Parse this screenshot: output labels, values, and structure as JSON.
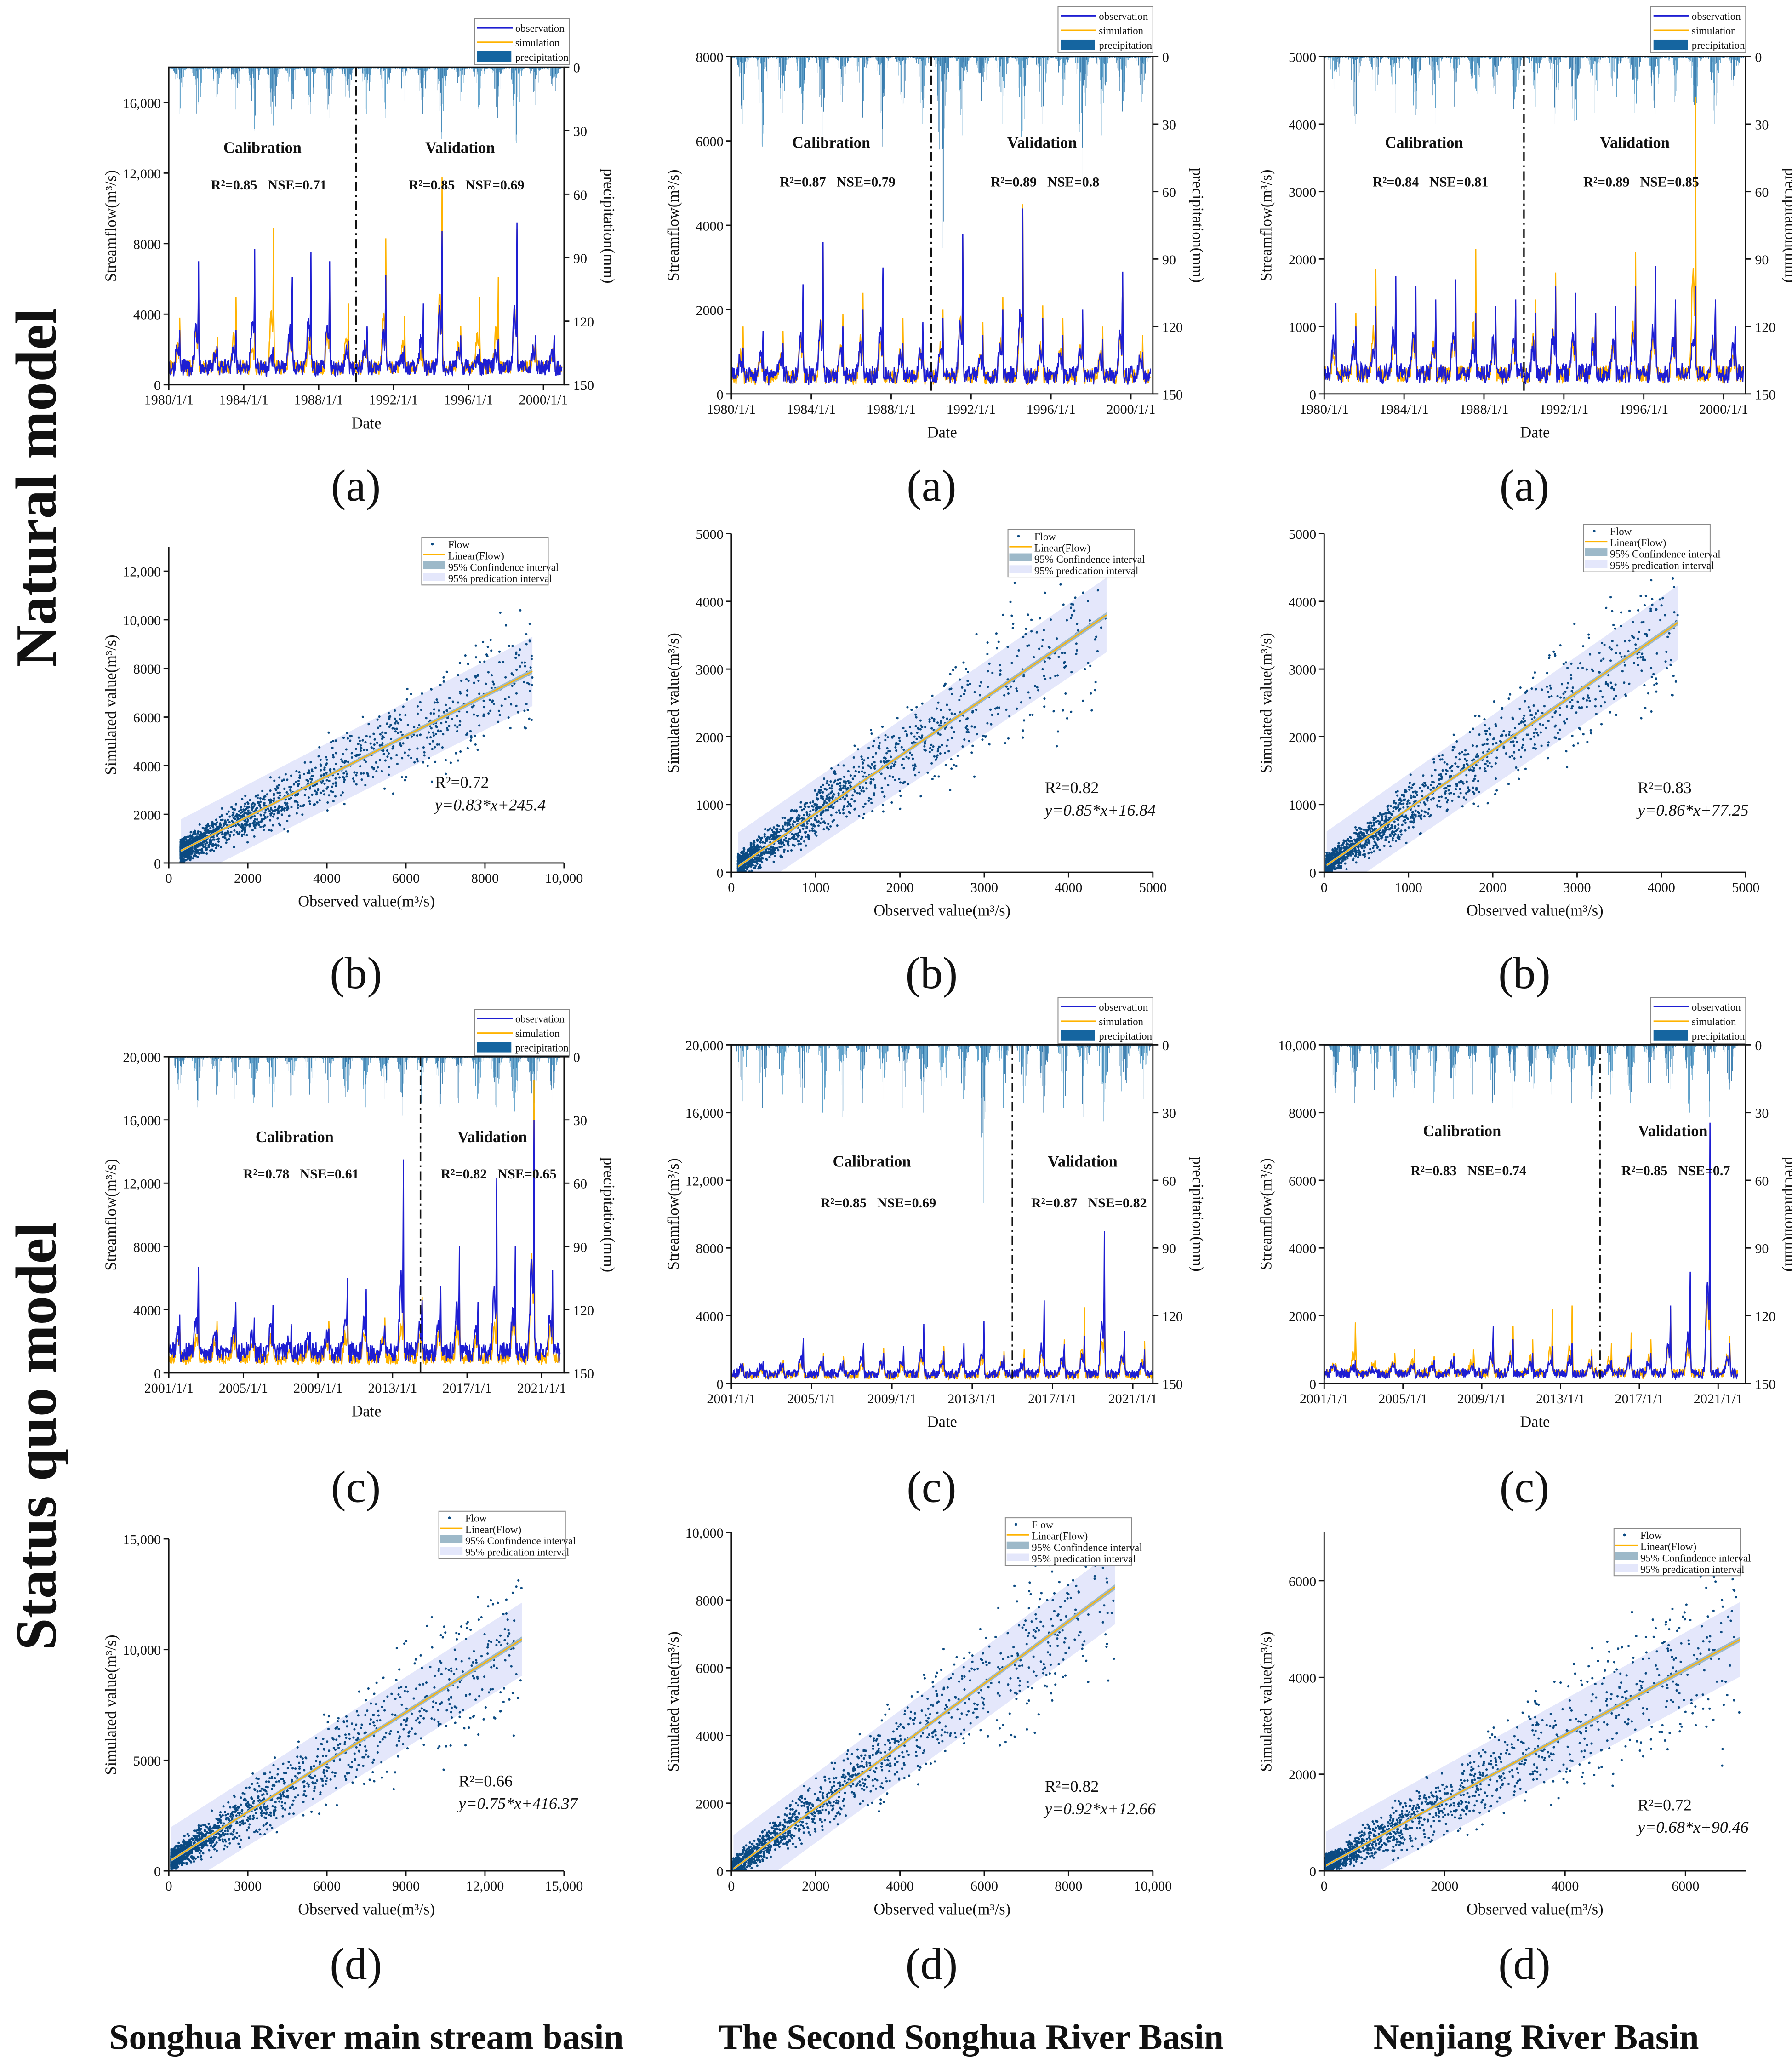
{
  "figure": {
    "row_labels": [
      "Natural model",
      "Status quo model"
    ],
    "column_labels": [
      "Songhua River main stream basin",
      "The Second Songhua River Basin",
      "Nenjiang River Basin"
    ]
  },
  "colors": {
    "observation": "#1e1ed2",
    "simulation": "#ffb300",
    "precipitation": "#1565a0",
    "flow_points": "#0b4a82",
    "confidence": "#9db9c9",
    "prediction": "#e4e7fb"
  },
  "chart_data": [
    {
      "type": "line",
      "panel_label": "(a)",
      "xlabel": "Date",
      "ylabel": "Streamflow(m³/s)",
      "y2label": "precipitation(mm)",
      "xticks": [
        "1980/1/1",
        "1984/1/1",
        "1988/1/1",
        "1992/1/1",
        "1996/1/1",
        "2000/1/1"
      ],
      "yticks": [
        "0",
        "4000",
        "8000",
        "12,000",
        "16,000"
      ],
      "y2ticks": [
        "0",
        "30",
        "60",
        "90",
        "120",
        "150"
      ],
      "ylim": [
        0,
        18000
      ],
      "y2lim": [
        0,
        150
      ],
      "y2_inverted": true,
      "grid": false,
      "legend_placement": "top-right",
      "legend": [
        "observation",
        "simulation",
        "precipitation"
      ],
      "split_year": 1990,
      "periods": [
        {
          "label": "Calibration",
          "r2": "R²=0.85",
          "nse": "NSE=0.71"
        },
        {
          "label": "Validation",
          "r2": "R²=0.85",
          "nse": "NSE=0.69"
        }
      ],
      "start_year": 1980,
      "annual_peak_observation": [
        3100,
        7000,
        2000,
        3100,
        7700,
        2000,
        6100,
        7500,
        7000,
        2500,
        3300,
        6200,
        2000,
        4600,
        8700,
        2800,
        2000,
        2600,
        9200,
        2800,
        2800
      ],
      "annual_peak_simulation": [
        3800,
        5800,
        2700,
        5000,
        3000,
        8900,
        4200,
        4600,
        5800,
        4600,
        2800,
        8300,
        3900,
        2400,
        11800,
        3300,
        5000,
        6100,
        8800,
        2800,
        2500
      ],
      "annual_peak_precipitation_mm": [
        22,
        26,
        14,
        20,
        30,
        32,
        20,
        22,
        24,
        20,
        22,
        24,
        16,
        22,
        34,
        16,
        25,
        24,
        36,
        18,
        16
      ]
    },
    {
      "type": "line",
      "panel_label": "(a)",
      "xlabel": "Date",
      "ylabel": "Streamflow(m³/s)",
      "y2label": "precipitation(mm)",
      "xticks": [
        "1980/1/1",
        "1984/1/1",
        "1988/1/1",
        "1992/1/1",
        "1996/1/1",
        "2000/1/1"
      ],
      "yticks": [
        "0",
        "2000",
        "4000",
        "6000",
        "8000"
      ],
      "y2ticks": [
        "0",
        "30",
        "60",
        "90",
        "120",
        "150"
      ],
      "ylim": [
        0,
        8000
      ],
      "y2lim": [
        0,
        150
      ],
      "y2_inverted": true,
      "grid": false,
      "legend_placement": "top-right",
      "legend": [
        "observation",
        "simulation",
        "precipitation"
      ],
      "split_year": 1990,
      "periods": [
        {
          "label": "Calibration",
          "r2": "R²=0.87",
          "nse": "NSE=0.79"
        },
        {
          "label": "Validation",
          "r2": "R²=0.89",
          "nse": "NSE=0.8"
        }
      ],
      "start_year": 1980,
      "annual_peak_observation": [
        1100,
        1500,
        1200,
        2600,
        3600,
        1600,
        2000,
        3000,
        1200,
        1700,
        1800,
        3800,
        1400,
        2000,
        4400,
        1800,
        1400,
        2000,
        1300,
        2900,
        1000
      ],
      "annual_peak_simulation": [
        1600,
        1300,
        1500,
        2200,
        3500,
        1900,
        2400,
        2600,
        1800,
        1500,
        2000,
        3700,
        1700,
        2300,
        4500,
        2100,
        1800,
        1900,
        1600,
        2700,
        1400
      ],
      "annual_peak_precipitation_mm": [
        30,
        40,
        25,
        30,
        35,
        20,
        30,
        40,
        25,
        30,
        95,
        35,
        25,
        30,
        40,
        30,
        25,
        55,
        35,
        25,
        20
      ]
    },
    {
      "type": "line",
      "panel_label": "(a)",
      "xlabel": "Date",
      "ylabel": "Streamflow(m³/s)",
      "y2label": "precipitation(mm)",
      "xticks": [
        "1980/1/1",
        "1984/1/1",
        "1988/1/1",
        "1992/1/1",
        "1996/1/1",
        "2000/1/1"
      ],
      "yticks": [
        "0",
        "1000",
        "2000",
        "3000",
        "4000",
        "5000"
      ],
      "y2ticks": [
        "0",
        "30",
        "60",
        "90",
        "120",
        "150"
      ],
      "ylim": [
        0,
        5000
      ],
      "y2lim": [
        0,
        150
      ],
      "y2_inverted": true,
      "grid": false,
      "legend_placement": "top-right",
      "legend": [
        "observation",
        "simulation",
        "precipitation"
      ],
      "split_year": 1990,
      "periods": [
        {
          "label": "Calibration",
          "r2": "R²=0.84",
          "nse": "NSE=0.81"
        },
        {
          "label": "Validation",
          "r2": "R²=0.89",
          "nse": "NSE=0.85"
        }
      ],
      "start_year": 1980,
      "annual_peak_observation": [
        1350,
        1000,
        1300,
        1750,
        1600,
        1400,
        1700,
        1200,
        1300,
        1400,
        1200,
        1600,
        1500,
        1200,
        1300,
        1600,
        1900,
        1400,
        1600,
        1400,
        1000
      ],
      "annual_peak_simulation": [
        900,
        1200,
        1850,
        1500,
        1400,
        1200,
        1500,
        2150,
        1200,
        1300,
        1400,
        1800,
        1300,
        1200,
        1200,
        2100,
        1400,
        1300,
        4400,
        1200,
        800
      ],
      "annual_peak_precipitation_mm": [
        25,
        30,
        20,
        25,
        30,
        30,
        25,
        30,
        20,
        30,
        25,
        30,
        35,
        25,
        30,
        25,
        30,
        20,
        25,
        30,
        20
      ]
    },
    {
      "type": "scatter",
      "panel_label": "(b)",
      "xlabel": "Observed value(m³/s)",
      "ylabel": "Simulated value(m³/s)",
      "xticks": [
        "0",
        "2000",
        "4000",
        "6000",
        "8000",
        "10,000"
      ],
      "yticks": [
        "0",
        "2000",
        "4000",
        "6000",
        "8000",
        "10,000",
        "12,000"
      ],
      "xlim": [
        0,
        10000
      ],
      "ylim": [
        0,
        13000
      ],
      "grid": false,
      "legend_placement": "top-right",
      "legend": [
        "Flow",
        "Linear(Flow)",
        "95% Confindence interval",
        "95% predication interval"
      ],
      "r2_label": "R²=0.72",
      "equation": "y=0.83*x+245.4",
      "slope": 0.83,
      "intercept": 245.4,
      "x_range": [
        300,
        9200
      ]
    },
    {
      "type": "scatter",
      "panel_label": "(b)",
      "xlabel": "Observed value(m³/s)",
      "ylabel": "Simulated value(m³/s)",
      "xticks": [
        "0",
        "1000",
        "2000",
        "3000",
        "4000",
        "5000"
      ],
      "yticks": [
        "0",
        "1000",
        "2000",
        "3000",
        "4000",
        "5000"
      ],
      "xlim": [
        0,
        5000
      ],
      "ylim": [
        0,
        5000
      ],
      "grid": false,
      "legend_placement": "top-right",
      "legend": [
        "Flow",
        "Linear(Flow)",
        "95% Confindence interval",
        "95% predication interval"
      ],
      "r2_label": "R²=0.82",
      "equation": "y=0.85*x+16.84",
      "slope": 0.85,
      "intercept": 16.84,
      "x_range": [
        80,
        4450
      ]
    },
    {
      "type": "scatter",
      "panel_label": "(b)",
      "xlabel": "Observed value(m³/s)",
      "ylabel": "Simulated value(m³/s)",
      "xticks": [
        "0",
        "1000",
        "2000",
        "3000",
        "4000",
        "5000"
      ],
      "yticks": [
        "0",
        "1000",
        "2000",
        "3000",
        "4000",
        "5000"
      ],
      "xlim": [
        0,
        5000
      ],
      "ylim": [
        0,
        5000
      ],
      "grid": false,
      "legend_placement": "top-right",
      "legend": [
        "Flow",
        "Linear(Flow)",
        "95% Confindence interval",
        "95% predication interval"
      ],
      "r2_label": "R²=0.83",
      "equation": "y=0.86*x+77.25",
      "slope": 0.86,
      "intercept": 77.25,
      "x_range": [
        30,
        4200
      ]
    },
    {
      "type": "line",
      "panel_label": "(c)",
      "xlabel": "Date",
      "ylabel": "Streamflow(m³/s)",
      "y2label": "precipitation(mm)",
      "xticks": [
        "2001/1/1",
        "2005/1/1",
        "2009/1/1",
        "2013/1/1",
        "2017/1/1",
        "2021/1/1"
      ],
      "yticks": [
        "0",
        "4000",
        "8000",
        "12,000",
        "16,000",
        "20,000"
      ],
      "y2ticks": [
        "0",
        "30",
        "60",
        "90",
        "120",
        "150"
      ],
      "ylim": [
        0,
        20000
      ],
      "y2lim": [
        0,
        150
      ],
      "y2_inverted": true,
      "grid": false,
      "legend_placement": "top-right",
      "legend": [
        "observation",
        "simulation",
        "precipitation"
      ],
      "split_year": 2014.5,
      "periods": [
        {
          "label": "Calibration",
          "r2": "R²=0.78",
          "nse": "NSE=0.61"
        },
        {
          "label": "Validation",
          "r2": "R²=0.82",
          "nse": "NSE=0.65"
        }
      ],
      "start_year": 2001,
      "annual_peak_observation": [
        3700,
        6700,
        2600,
        4500,
        3500,
        4300,
        2600,
        2600,
        2800,
        6000,
        5300,
        3000,
        13500,
        4600,
        5500,
        8000,
        4500,
        12300,
        8000,
        16000,
        6500
      ],
      "annual_peak_simulation": [
        3000,
        3500,
        3300,
        3300,
        2800,
        3600,
        2300,
        2500,
        3300,
        4200,
        4500,
        3500,
        6000,
        4800,
        4500,
        5500,
        3600,
        6000,
        7800,
        18500,
        5500
      ],
      "annual_peak_precipitation_mm": [
        20,
        24,
        18,
        20,
        22,
        24,
        20,
        18,
        22,
        26,
        24,
        20,
        28,
        22,
        24,
        22,
        20,
        24,
        26,
        30,
        22
      ]
    },
    {
      "type": "line",
      "panel_label": "(c)",
      "xlabel": "Date",
      "ylabel": "Streamflow(m³/s)",
      "y2label": "precipitation(mm)",
      "xticks": [
        "2001/1/1",
        "2005/1/1",
        "2009/1/1",
        "2013/1/1",
        "2017/1/1",
        "2021/1/1"
      ],
      "yticks": [
        "0",
        "4000",
        "8000",
        "12,000",
        "16,000",
        "20,000"
      ],
      "y2ticks": [
        "0",
        "30",
        "60",
        "90",
        "120",
        "150"
      ],
      "ylim": [
        0,
        20000
      ],
      "y2lim": [
        0,
        150
      ],
      "y2_inverted": true,
      "grid": false,
      "legend_placement": "top-right",
      "legend": [
        "observation",
        "simulation",
        "precipitation"
      ],
      "split_year": 2015,
      "periods": [
        {
          "label": "Calibration",
          "r2": "R²=0.85",
          "nse": "NSE=0.69"
        },
        {
          "label": "Validation",
          "r2": "R²=0.87",
          "nse": "NSE=0.82"
        }
      ],
      "start_year": 2001,
      "annual_peak_observation": [
        1000,
        1300,
        1200,
        2700,
        1600,
        1400,
        2400,
        1800,
        2200,
        3500,
        1900,
        2400,
        3700,
        1700,
        1500,
        4900,
        2300,
        2800,
        9000,
        3100,
        2000
      ],
      "annual_peak_simulation": [
        1200,
        1100,
        1400,
        2000,
        1800,
        1600,
        2000,
        2100,
        1800,
        3000,
        2200,
        2000,
        3000,
        1900,
        2000,
        3800,
        2600,
        4500,
        6000,
        3000,
        2500
      ],
      "annual_peak_precipitation_mm": [
        25,
        28,
        22,
        26,
        30,
        32,
        26,
        24,
        28,
        30,
        26,
        24,
        70,
        28,
        26,
        30,
        28,
        32,
        34,
        30,
        24
      ]
    },
    {
      "type": "line",
      "panel_label": "(c)",
      "xlabel": "Date",
      "ylabel": "Streamflow(m³/s)",
      "y2label": "precipitation(mm)",
      "xticks": [
        "2001/1/1",
        "2005/1/1",
        "2009/1/1",
        "2013/1/1",
        "2017/1/1",
        "2021/1/1"
      ],
      "yticks": [
        "0",
        "2000",
        "4000",
        "6000",
        "8000",
        "10,000"
      ],
      "y2ticks": [
        "0",
        "30",
        "60",
        "90",
        "120",
        "150"
      ],
      "ylim": [
        0,
        10000
      ],
      "y2lim": [
        0,
        150
      ],
      "y2_inverted": true,
      "grid": false,
      "legend_placement": "top-right",
      "legend": [
        "observation",
        "simulation",
        "precipitation"
      ],
      "split_year": 2015,
      "periods": [
        {
          "label": "Calibration",
          "r2": "R²=0.83",
          "nse": "NSE=0.74"
        },
        {
          "label": "Validation",
          "r2": "R²=0.85",
          "nse": "NSE=0.7"
        }
      ],
      "start_year": 2001,
      "annual_peak_observation": [
        500,
        700,
        400,
        600,
        500,
        700,
        800,
        600,
        1700,
        1300,
        900,
        1100,
        1200,
        800,
        700,
        1000,
        900,
        2300,
        3300,
        7700,
        1200
      ],
      "annual_peak_simulation": [
        600,
        1800,
        700,
        900,
        1000,
        800,
        900,
        1000,
        1500,
        1700,
        1300,
        2200,
        2300,
        1000,
        1200,
        1500,
        1300,
        2200,
        2000,
        6300,
        1400
      ],
      "annual_peak_precipitation_mm": [
        22,
        26,
        20,
        24,
        22,
        26,
        24,
        22,
        26,
        28,
        24,
        22,
        26,
        24,
        22,
        26,
        24,
        28,
        30,
        32,
        24
      ]
    },
    {
      "type": "scatter",
      "panel_label": "(d)",
      "xlabel": "Observed value(m³/s)",
      "ylabel": "Simulated value(m³/s)",
      "xticks": [
        "0",
        "3000",
        "6000",
        "9000",
        "12,000",
        "15,000"
      ],
      "yticks": [
        "0",
        "5000",
        "10,000",
        "15,000"
      ],
      "xlim": [
        0,
        15000
      ],
      "ylim": [
        0,
        15000
      ],
      "grid": false,
      "legend_placement": "top-right",
      "legend": [
        "Flow",
        "Linear(Flow)",
        "95% Confindence interval",
        "95% predication interval"
      ],
      "r2_label": "R²=0.66",
      "equation": "y=0.75*x+416.37",
      "slope": 0.75,
      "intercept": 416.37,
      "x_range": [
        100,
        13400
      ]
    },
    {
      "type": "scatter",
      "panel_label": "(d)",
      "xlabel": "Observed value(m³/s)",
      "ylabel": "Simulated value(m³/s)",
      "xticks": [
        "0",
        "2000",
        "4000",
        "6000",
        "8000",
        "10,000"
      ],
      "yticks": [
        "0",
        "2000",
        "4000",
        "6000",
        "8000",
        "10,000"
      ],
      "xlim": [
        0,
        10000
      ],
      "ylim": [
        0,
        10000
      ],
      "grid": false,
      "legend_placement": "top-right",
      "legend": [
        "Flow",
        "Linear(Flow)",
        "95% Confindence interval",
        "95% predication interval"
      ],
      "r2_label": "R²=0.82",
      "equation": "y=0.92*x+12.66",
      "slope": 0.92,
      "intercept": 12.66,
      "x_range": [
        50,
        9100
      ]
    },
    {
      "type": "scatter",
      "panel_label": "(d)",
      "xlabel": "Observed value(m³/s)",
      "ylabel": "Simulated value(m³/s)",
      "xticks": [
        "0",
        "2000",
        "4000",
        "6000"
      ],
      "yticks": [
        "0",
        "2000",
        "4000",
        "6000"
      ],
      "xlim": [
        0,
        7000
      ],
      "ylim": [
        0,
        7000
      ],
      "grid": false,
      "legend_placement": "top-right",
      "legend": [
        "Flow",
        "Linear(Flow)",
        "95% Confindence interval",
        "95% predication interval"
      ],
      "r2_label": "R²=0.72",
      "equation": "y=0.68*x+90.46",
      "slope": 0.68,
      "intercept": 90.46,
      "x_range": [
        30,
        6900
      ]
    }
  ]
}
